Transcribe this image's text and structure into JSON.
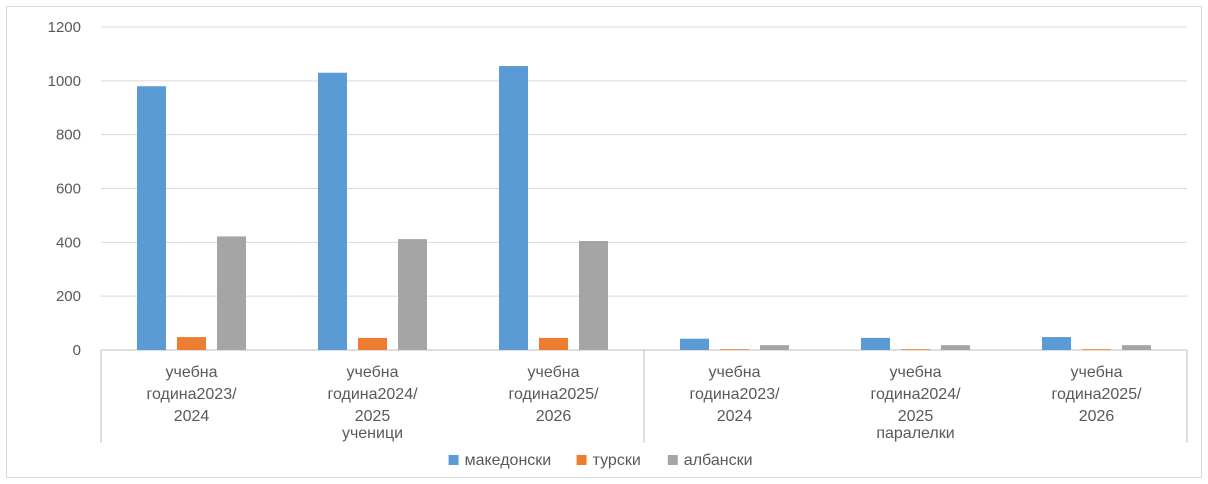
{
  "chart_data": {
    "type": "bar",
    "ylim": [
      0,
      1200
    ],
    "yticks": [
      0,
      200,
      400,
      600,
      800,
      1000,
      1200
    ],
    "grid": true,
    "legend_position": "bottom",
    "groups": [
      {
        "label": "ученици",
        "categories": [
          [
            "учебна",
            "година2023/",
            "2024"
          ],
          [
            "учебна",
            "година2024/",
            "2025"
          ],
          [
            "учебна",
            "година2025/",
            "2026"
          ]
        ]
      },
      {
        "label": "паралелки",
        "categories": [
          [
            "учебна",
            "година2023/",
            "2024"
          ],
          [
            "учебна",
            "година2024/",
            "2025"
          ],
          [
            "учебна",
            "година2025/",
            "2026"
          ]
        ]
      }
    ],
    "series": [
      {
        "name": "македонски",
        "color": "#5b9bd5",
        "values": [
          980,
          1030,
          1055,
          42,
          45,
          48
        ]
      },
      {
        "name": "турски",
        "color": "#ed7d31",
        "values": [
          48,
          45,
          45,
          3,
          3,
          3
        ]
      },
      {
        "name": "албански",
        "color": "#a5a5a5",
        "values": [
          422,
          412,
          405,
          18,
          18,
          18
        ]
      }
    ]
  }
}
